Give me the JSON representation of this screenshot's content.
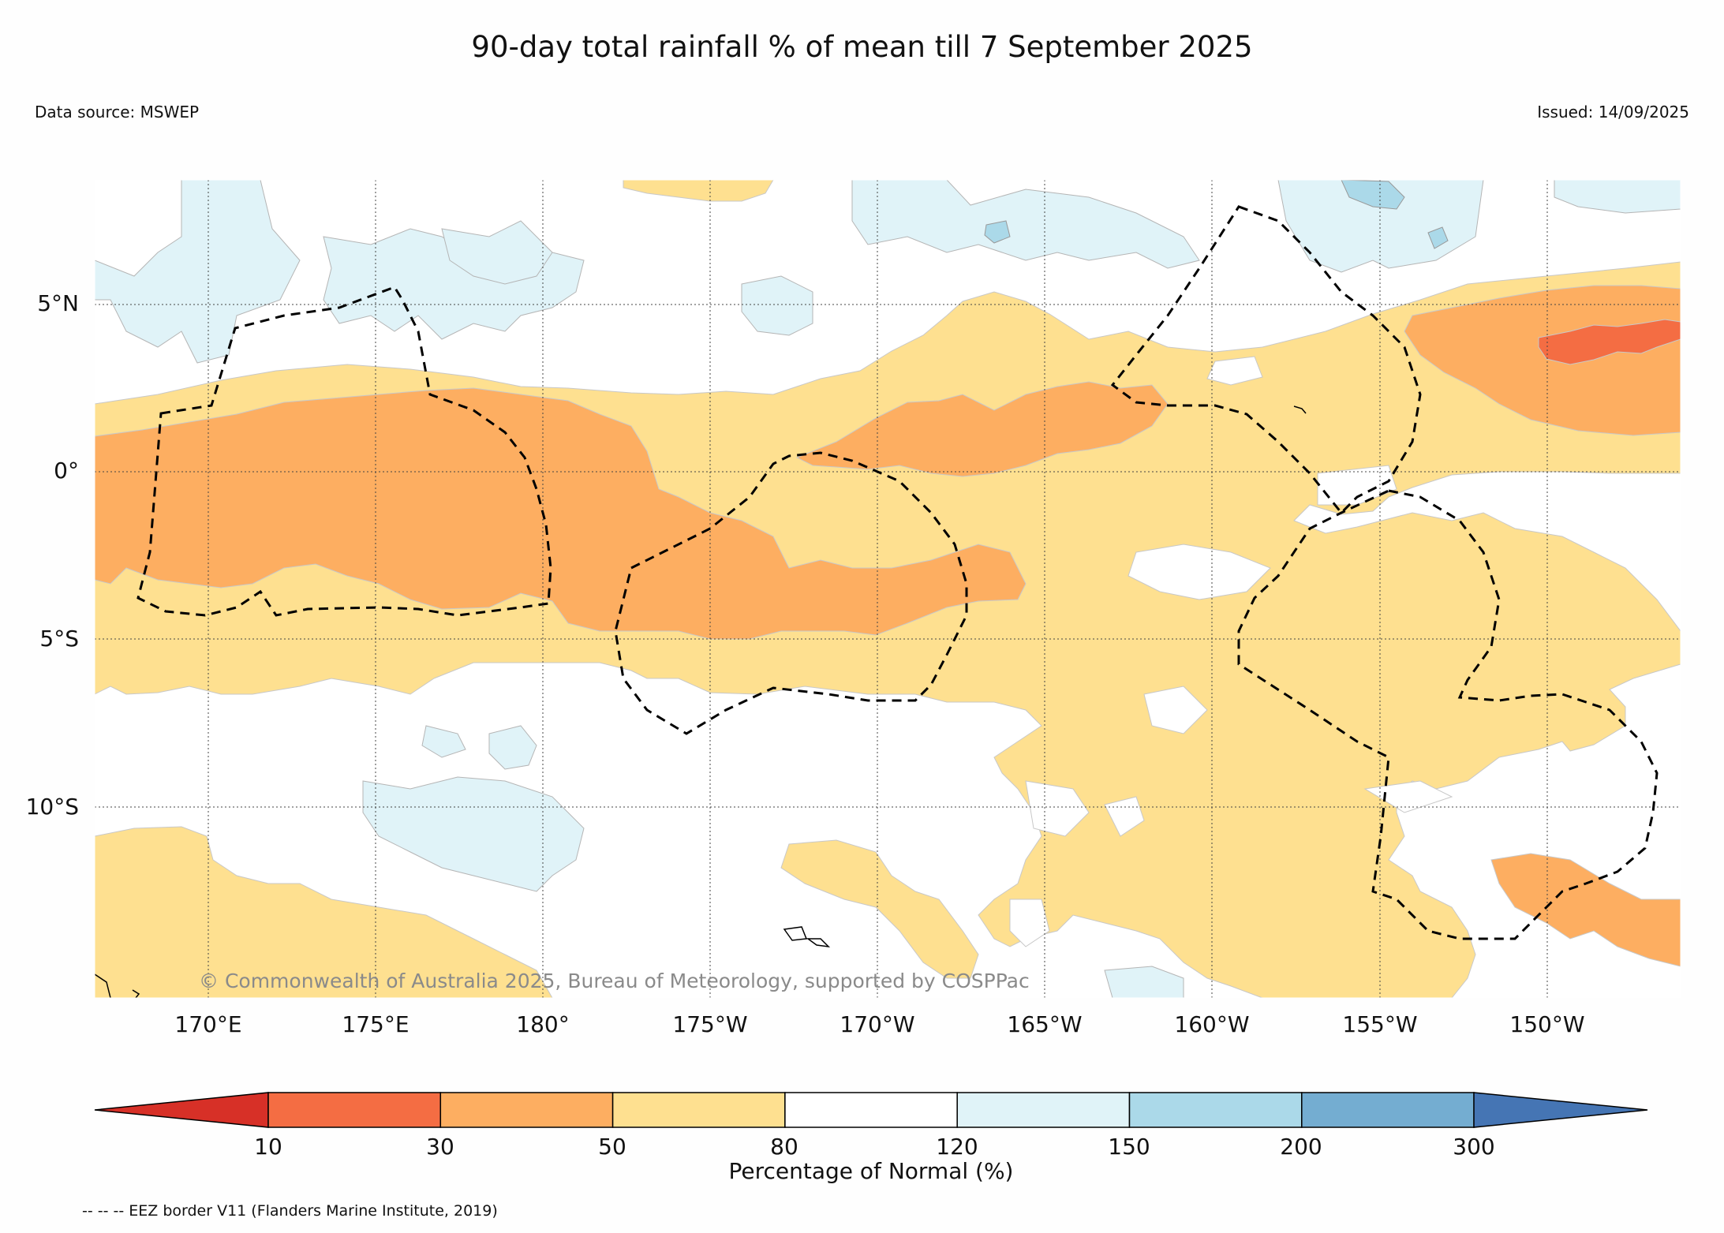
{
  "header": {
    "title": "90-day total rainfall % of mean till 7 September 2025",
    "data_source": "Data source: MSWEP",
    "issued": "Issued: 14/09/2025"
  },
  "map": {
    "lat_labels": [
      "5°N",
      "0°",
      "5°S",
      "10°S"
    ],
    "lon_labels": [
      "170°E",
      "175°E",
      "180°",
      "175°W",
      "170°W",
      "165°W",
      "160°W",
      "155°W",
      "150°W"
    ],
    "copyright": "© Commonwealth of Australia 2025, Bureau of Meteorology, supported by COSPPac",
    "extent": {
      "lon_min": 166.7,
      "lon_max": 214.1,
      "lat_min": -15.7,
      "lat_max": 8.8
    }
  },
  "colorbar": {
    "title": "Percentage of Normal (%)",
    "ticks": [
      "10",
      "30",
      "50",
      "80",
      "120",
      "150",
      "200",
      "300"
    ],
    "colors": [
      "#d73027",
      "#f46d43",
      "#fdae61",
      "#fee090",
      "#ffffff",
      "#e0f3f8",
      "#abd9e9",
      "#74add1",
      "#4575b4"
    ]
  },
  "footer": {
    "eez_note": "-- -- -- EEZ border V11 (Flanders Marine Institute, 2019)"
  }
}
